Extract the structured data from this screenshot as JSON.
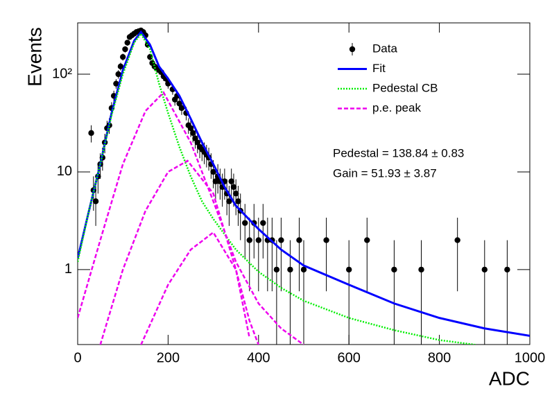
{
  "chart_data": {
    "type": "log_fit",
    "xlabel": "ADC",
    "ylabel": "Events",
    "xlim": [
      0,
      1000
    ],
    "ylim": [
      0.171,
      335
    ],
    "log_y": true,
    "xticks": [
      0,
      200,
      400,
      600,
      800,
      1000
    ],
    "yticks": [
      1,
      10,
      {
        "value": 100,
        "label": "10²"
      }
    ],
    "annotations": [
      "Pedestal = 138.84 ± 0.83",
      "Gain = 51.93 ± 3.87"
    ],
    "series": [
      {
        "name": "Data",
        "kind": "points",
        "color": "#000000",
        "x": [
          30,
          35,
          40,
          45,
          50,
          55,
          60,
          65,
          70,
          75,
          80,
          85,
          90,
          95,
          100,
          105,
          110,
          115,
          120,
          125,
          130,
          135,
          140,
          145,
          150,
          155,
          160,
          165,
          170,
          175,
          180,
          185,
          190,
          195,
          200,
          210,
          215,
          220,
          225,
          230,
          240,
          245,
          250,
          255,
          260,
          265,
          270,
          275,
          280,
          285,
          290,
          295,
          300,
          305,
          310,
          315,
          320,
          325,
          330,
          335,
          340,
          345,
          350,
          355,
          360,
          370,
          380,
          390,
          400,
          410,
          420,
          430,
          440,
          450,
          470,
          490,
          500,
          550,
          600,
          640,
          700,
          760,
          840,
          900,
          950
        ],
        "values": [
          25,
          6.5,
          5,
          9,
          12,
          14,
          20,
          28,
          30,
          45,
          60,
          80,
          100,
          120,
          150,
          180,
          210,
          240,
          250,
          260,
          270,
          275,
          280,
          270,
          250,
          200,
          150,
          130,
          120,
          115,
          110,
          105,
          95,
          90,
          80,
          70,
          55,
          60,
          50,
          45,
          40,
          30,
          28,
          25,
          22,
          20,
          18,
          17,
          16,
          15,
          14,
          12,
          10,
          8,
          9,
          8,
          7,
          8,
          6,
          5,
          8,
          7,
          6,
          5,
          4,
          3,
          2,
          3,
          2,
          3,
          2,
          2,
          1,
          2,
          1,
          2,
          1,
          2,
          1,
          2,
          1,
          1,
          2,
          1,
          1
        ],
        "errors": [
          5,
          2.5,
          2.2,
          3,
          3.5,
          3.7,
          4.5,
          5.3,
          5.5,
          6.7,
          7.7,
          8.9,
          10,
          11,
          12.2,
          13.4,
          14.5,
          15.5,
          15.8,
          16.1,
          16.4,
          16.6,
          16.7,
          16.4,
          15.8,
          14.1,
          12.2,
          11.4,
          11,
          10.7,
          10.5,
          10.2,
          9.7,
          9.5,
          8.9,
          8.4,
          7.4,
          7.7,
          7.1,
          6.7,
          6.3,
          5.5,
          5.3,
          5,
          4.7,
          4.5,
          4.2,
          4.1,
          4,
          3.9,
          3.7,
          3.5,
          3.2,
          2.8,
          3,
          2.8,
          2.6,
          2.8,
          2.4,
          2.2,
          2.8,
          2.6,
          2.4,
          2.2,
          2,
          1.7,
          1.4,
          1.7,
          1.4,
          1.7,
          1.4,
          1.4,
          1,
          1.4,
          1,
          1.4,
          1,
          1.4,
          1,
          1.4,
          1,
          1,
          1.4,
          1,
          1
        ]
      },
      {
        "name": "Fit",
        "kind": "line",
        "color": "#0000ff",
        "dash": "none",
        "width": 3,
        "x": [
          0,
          25,
          50,
          75,
          100,
          125,
          140,
          160,
          180,
          200,
          225,
          250,
          275,
          300,
          325,
          350,
          400,
          450,
          500,
          600,
          700,
          800,
          900,
          1000
        ],
        "values": [
          1.3,
          4,
          12,
          40,
          110,
          220,
          270,
          200,
          120,
          90,
          60,
          35,
          20,
          12,
          7,
          4.5,
          2.6,
          1.6,
          1.1,
          0.7,
          0.45,
          0.32,
          0.25,
          0.21
        ]
      },
      {
        "name": "Pedestal CB",
        "kind": "line",
        "color": "#00ee00",
        "dash": "2 2",
        "width": 2.5,
        "x": [
          0,
          25,
          50,
          75,
          100,
          125,
          140,
          160,
          180,
          200,
          225,
          250,
          275,
          300,
          350,
          400,
          450,
          500,
          600,
          700,
          800,
          880
        ],
        "values": [
          1.2,
          4,
          12,
          38,
          100,
          210,
          260,
          180,
          80,
          40,
          18,
          9,
          5,
          3.3,
          1.6,
          0.95,
          0.65,
          0.48,
          0.32,
          0.24,
          0.19,
          0.17
        ]
      },
      {
        "name": "p.e. peak",
        "kind": "multi",
        "color": "#ee00ee",
        "dash": "6 3",
        "width": 2.5,
        "components": [
          {
            "x": [
              0,
              50,
              100,
              150,
              190,
              250,
              300,
              350,
              400,
              450,
              500
            ],
            "values": [
              0.32,
              2,
              12,
              42,
              65,
              20,
              5,
              1.2,
              0.45,
              0.25,
              0.17
            ]
          },
          {
            "x": [
              50,
              100,
              150,
              200,
              243,
              300,
              350,
              380,
              400
            ],
            "values": [
              0.17,
              1,
              4,
              10,
              13,
              6,
              1,
              0.3,
              0.17
            ]
          },
          {
            "x": [
              140,
              200,
              250,
              300,
              350,
              380
            ],
            "values": [
              0.17,
              0.7,
              1.6,
              2.4,
              1,
              0.2
            ]
          }
        ]
      }
    ]
  }
}
